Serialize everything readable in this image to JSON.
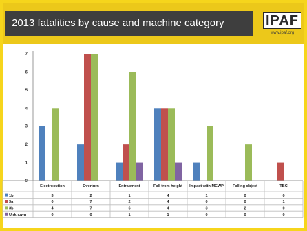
{
  "slide": {
    "title": "2013 fatalities by cause and machine category",
    "logo_text": "IPAF",
    "logo_url": "www.ipaf.org"
  },
  "colors": {
    "frame": "#f6d51c",
    "header": "#ecc81a",
    "title_bar": "#3e3e3e"
  },
  "chart_data": {
    "type": "bar",
    "title": "2013 fatalities by cause and machine category",
    "categories": [
      "Electrocution",
      "Overturn",
      "Entrapment",
      "Fall from height",
      "Impact with MEWP",
      "Falling object",
      "TBC"
    ],
    "series": [
      {
        "name": "1b",
        "color": "#4f81bd",
        "values": [
          3,
          2,
          1,
          4,
          1,
          0,
          0
        ]
      },
      {
        "name": "3a",
        "color": "#c0504d",
        "values": [
          0,
          7,
          2,
          4,
          0,
          0,
          1
        ]
      },
      {
        "name": "3b",
        "color": "#9bbb59",
        "values": [
          4,
          7,
          6,
          4,
          3,
          2,
          0
        ]
      },
      {
        "name": "Unknown",
        "color": "#8064a2",
        "values": [
          0,
          0,
          1,
          1,
          0,
          0,
          0
        ]
      }
    ],
    "ylim": [
      0,
      7
    ],
    "yticks": [
      "0",
      "1",
      "2",
      "3",
      "4",
      "5",
      "6",
      "7"
    ],
    "table": [
      [
        "3",
        "2",
        "1",
        "4",
        "1",
        "0",
        "0"
      ],
      [
        "0",
        "7",
        "2",
        "4",
        "0",
        "0",
        "1"
      ],
      [
        "4",
        "7",
        "6",
        "4",
        "3",
        "2",
        "0"
      ],
      [
        "0",
        "0",
        "1",
        "1",
        "0",
        "0",
        "0"
      ]
    ],
    "grid": false,
    "legend": "data-table"
  }
}
